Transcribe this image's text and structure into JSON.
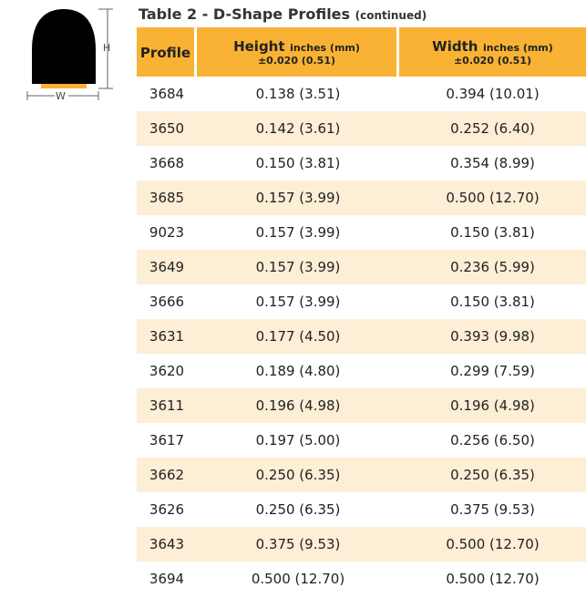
{
  "title": "Table 2 - D-Shape Profiles",
  "title_note": "(continued)",
  "diagram": {
    "height_label": "H",
    "width_label": "W"
  },
  "table": {
    "columns": [
      {
        "name": "Profile"
      },
      {
        "name": "Height",
        "unit": "inches (mm)",
        "tolerance": "±0.020 (0.51)"
      },
      {
        "name": "Width",
        "unit": "inches (mm)",
        "tolerance": "±0.020 (0.51)"
      }
    ],
    "rows": [
      [
        "3684",
        "0.138 (3.51)",
        "0.394 (10.01)"
      ],
      [
        "3650",
        "0.142 (3.61)",
        "0.252 (6.40)"
      ],
      [
        "3668",
        "0.150 (3.81)",
        "0.354 (8.99)"
      ],
      [
        "3685",
        "0.157 (3.99)",
        "0.500 (12.70)"
      ],
      [
        "9023",
        "0.157 (3.99)",
        "0.150 (3.81)"
      ],
      [
        "3649",
        "0.157 (3.99)",
        "0.236 (5.99)"
      ],
      [
        "3666",
        "0.157 (3.99)",
        "0.150 (3.81)"
      ],
      [
        "3631",
        "0.177 (4.50)",
        "0.393 (9.98)"
      ],
      [
        "3620",
        "0.189 (4.80)",
        "0.299 (7.59)"
      ],
      [
        "3611",
        "0.196 (4.98)",
        "0.196 (4.98)"
      ],
      [
        "3617",
        "0.197 (5.00)",
        "0.256 (6.50)"
      ],
      [
        "3662",
        "0.250 (6.35)",
        "0.250 (6.35)"
      ],
      [
        "3626",
        "0.250 (6.35)",
        "0.375 (9.53)"
      ],
      [
        "3643",
        "0.375 (9.53)",
        "0.500 (12.70)"
      ],
      [
        "3694",
        "0.500 (12.70)",
        "0.500 (12.70)"
      ]
    ]
  }
}
